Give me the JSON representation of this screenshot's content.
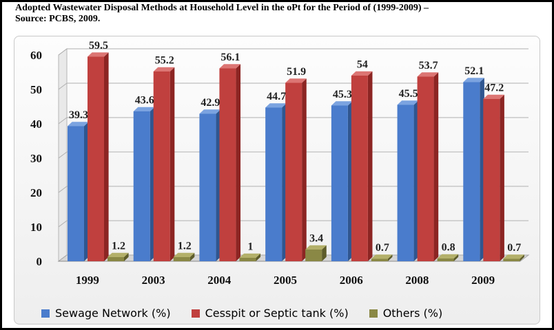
{
  "title": {
    "line1": "Adopted Wastewater Disposal Methods at Household Level in the oPt for the Period of (1999-2009) –",
    "line2": "Source: PCBS, 2009."
  },
  "colors": {
    "series": [
      "#4a7ccc",
      "#c0403e",
      "#8a8845"
    ],
    "series_dark": [
      "#2f5690",
      "#8c2523",
      "#5d5c2a"
    ],
    "series_top": [
      "#7ba3e0",
      "#dc7573",
      "#b3b06a"
    ]
  },
  "chart_data": {
    "type": "bar",
    "title": "Adopted Wastewater Disposal Methods at Household Level in the oPt for the Period of (1999-2009) – Source: PCBS, 2009.",
    "categories": [
      "1999",
      "2003",
      "2004",
      "2005",
      "2006",
      "2008",
      "2009"
    ],
    "series": [
      {
        "name": "Sewage Network (%)",
        "values": [
          39.3,
          43.6,
          42.9,
          44.7,
          45.3,
          45.5,
          52.1
        ]
      },
      {
        "name": "Cesspit or Septic tank (%)",
        "values": [
          59.5,
          55.2,
          56.1,
          51.9,
          54,
          53.7,
          47.2
        ]
      },
      {
        "name": "Others (%)",
        "values": [
          1.2,
          1.2,
          1,
          3.4,
          0.7,
          0.8,
          0.7
        ]
      }
    ],
    "ylim": [
      0,
      60
    ],
    "yticks": [
      0,
      10,
      20,
      30,
      40,
      50,
      60
    ],
    "xlabel": "",
    "ylabel": "",
    "grid": true,
    "legend": "bottom",
    "style": "3d-column"
  }
}
